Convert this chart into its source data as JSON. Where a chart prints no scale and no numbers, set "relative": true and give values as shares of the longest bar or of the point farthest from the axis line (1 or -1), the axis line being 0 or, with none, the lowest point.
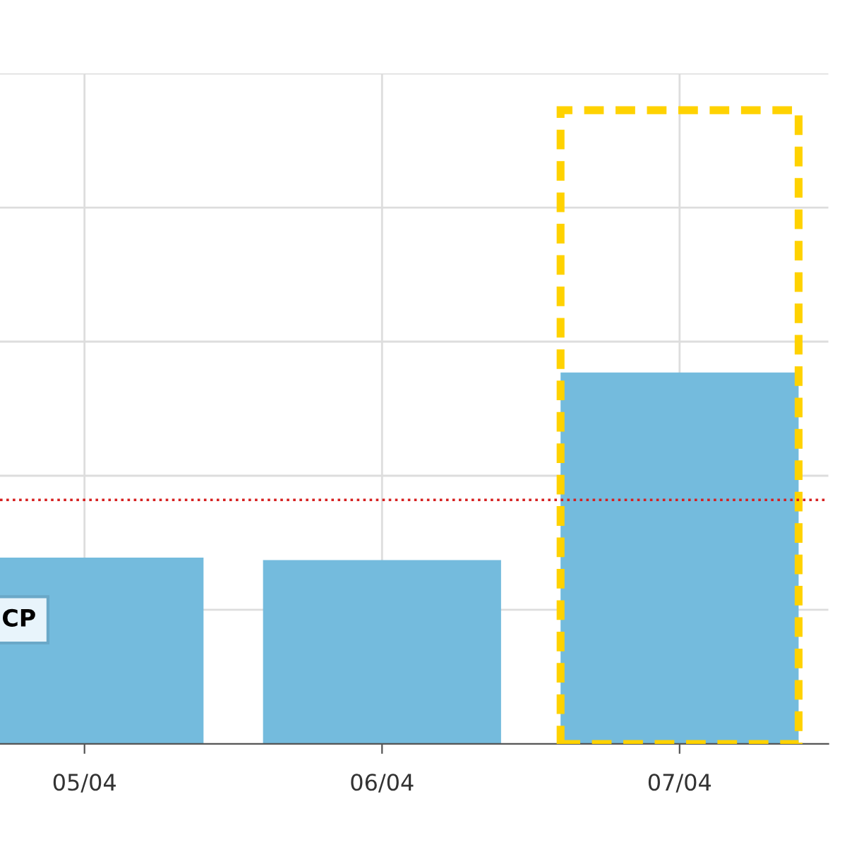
{
  "chart_data": {
    "type": "bar",
    "relative": true,
    "categories": [
      "05/04",
      "06/04",
      "07/04"
    ],
    "series": [
      {
        "color": "#74bbdd",
        "values": [
          0.294,
          0.29,
          0.586
        ]
      },
      {
        "type": "bar",
        "color": "#ffd200",
        "line_style": "dashed",
        "values": [
          null,
          null,
          1
        ]
      }
    ],
    "ref_lines": [
      {
        "axis": "y",
        "value": 0.385,
        "color": "#d62020",
        "line_style": "dotted"
      }
    ],
    "annotations": [
      "CP"
    ],
    "grid": true
  }
}
